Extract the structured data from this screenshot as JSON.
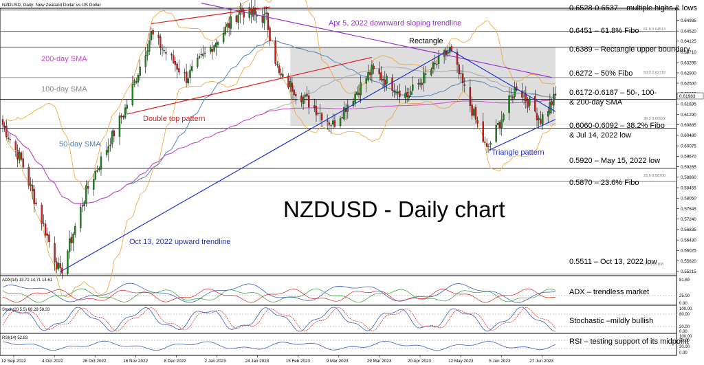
{
  "header": {
    "symbol_label": "NZDUSD, Daily:  New Zealand Dollar vs US Dollar"
  },
  "watermark": "NZDUSD - Daily chart",
  "colors": {
    "up": "#1a8f1a",
    "down": "#e01b1b",
    "sma50": "#4f86b7",
    "sma100": "#a9a9a9",
    "sma200": "#cc44cc",
    "bands": "#f0a030",
    "trend_blue": "#2233cc",
    "trend_purple": "#9933cc",
    "trend_red": "#e01b1b",
    "level": "#000000",
    "rectangle_fill": "#d3d3d3"
  },
  "price_axis": {
    "ticks": [
      "0.65350",
      "0.64935",
      "0.64520",
      "0.64125",
      "0.63710",
      "0.63295",
      "0.62900",
      "0.62500",
      "0.62100",
      "0.61695",
      "0.61290",
      "0.60885",
      "0.60480",
      "0.60075",
      "0.59670",
      "0.59265",
      "0.58860",
      "0.58455",
      "0.58050",
      "0.57645",
      "0.57240",
      "0.56835",
      "0.56430",
      "0.56025",
      "0.55620",
      "0.55215"
    ],
    "current_price": "0.61983"
  },
  "time_axis": {
    "labels": [
      "12 Sep 2022",
      "4 Oct 2022",
      "26 Oct 2022",
      "16 Nov 2022",
      "8 Dec 2022",
      "2 Jan 2023",
      "24 Jan 2023",
      "15 Feb 2023",
      "9 Mar 2023",
      "29 Mar 2023",
      "20 Apr 2023",
      "12 May 2023",
      "5 Jun 2023",
      "27 Jun 2023"
    ]
  },
  "fibo_tags": [
    {
      "text": "61.8 0.64513",
      "price": 0.64513
    },
    {
      "text": "50.0 0.62718",
      "price": 0.62718
    },
    {
      "text": "38.2 0.60922",
      "price": 0.60922
    },
    {
      "text": "23.6 0.58700",
      "price": 0.587
    },
    {
      "text": "0.0 0.55108",
      "price": 0.55108
    }
  ],
  "levels": [
    {
      "price": 0.6533,
      "label": "0.6528-0.6537 – multiple highs & lows"
    },
    {
      "price": 0.6451,
      "label": "0.6451 – 61.8% Fibo"
    },
    {
      "price": 0.6389,
      "label": "0.6389 – Rectangle upper boundary"
    },
    {
      "price": 0.6272,
      "label": "0.6272 – 50% Fibo"
    },
    {
      "price": 0.6187,
      "label": "0.6172-0.6187 – 50-, 100-"
    },
    {
      "price": 0.6076,
      "label": "0.6060-0.6092 – 38.2% Fibo"
    },
    {
      "price": 0.592,
      "label": "0.5920 – May 15, 2022 low"
    },
    {
      "price": 0.587,
      "label": "0.5870 – 23.6% Fibo"
    },
    {
      "price": 0.5511,
      "label": "0.5511 – Oct 13, 2022 low"
    }
  ],
  "level_sublabels": {
    "sma": "& 200-day SMA",
    "jul": "& Jul 14, 2022 low"
  },
  "annotations": {
    "downtrend": "Apr 5, 2022 downward sloping trendline",
    "rectangle": "Rectangle",
    "sma200": "200-day SMA",
    "sma100": "100-day SMA",
    "sma50": "50-day SMA",
    "double_top": "Double top pattern",
    "triangle": "Triangle pattern",
    "uptrend": "Oct 13, 2022 upward trendline"
  },
  "indicators": {
    "adx": {
      "header": "ADX(14) 13.72 14.71 14.61",
      "note": "ADX – trendless market",
      "ticks": [
        "81.69",
        "25.00",
        "0.00"
      ]
    },
    "stoch": {
      "header": "Stoch(20,5,5) 68.28 58.33",
      "note": "Stochastic –mildly bullish",
      "ticks": [
        "100.00",
        "80.00",
        "20.00",
        "0.00"
      ]
    },
    "rsi": {
      "header": "RSI(14) 52.83",
      "note": "RSI – testing support of its midpoint",
      "ticks": [
        "100.00",
        "70.00",
        "30.00",
        "0.00"
      ]
    }
  },
  "chart_data": {
    "type": "candlestick",
    "symbol": "NZDUSD",
    "timeframe": "Daily",
    "x_range": [
      "2022-09-12",
      "2023-07-07"
    ],
    "price_range": [
      0.5505,
      0.654
    ],
    "swing_points": [
      {
        "date": "2022-09-12",
        "price": 0.609
      },
      {
        "date": "2022-09-22",
        "price": 0.595
      },
      {
        "date": "2022-10-13",
        "price": 0.5511
      },
      {
        "date": "2022-10-27",
        "price": 0.583
      },
      {
        "date": "2022-11-17",
        "price": 0.615
      },
      {
        "date": "2022-12-01",
        "price": 0.644
      },
      {
        "date": "2022-12-20",
        "price": 0.627
      },
      {
        "date": "2023-01-18",
        "price": 0.653
      },
      {
        "date": "2023-02-01",
        "price": 0.65
      },
      {
        "date": "2023-02-08",
        "price": 0.628
      },
      {
        "date": "2023-03-09",
        "price": 0.609
      },
      {
        "date": "2023-03-30",
        "price": 0.63
      },
      {
        "date": "2023-04-18",
        "price": 0.62
      },
      {
        "date": "2023-05-11",
        "price": 0.638
      },
      {
        "date": "2023-05-31",
        "price": 0.599
      },
      {
        "date": "2023-06-16",
        "price": 0.624
      },
      {
        "date": "2023-06-29",
        "price": 0.611
      },
      {
        "date": "2023-07-07",
        "price": 0.6198
      }
    ],
    "rectangle": {
      "top": 0.6389,
      "bottom": 0.6085,
      "start": "2023-02-14",
      "end": "2023-07-07"
    },
    "trendlines": [
      {
        "name": "Apr 5, 2022 downward sloping trendline",
        "from": [
          "2022-12-28",
          0.656
        ],
        "to": [
          "2023-07-05",
          0.6272
        ]
      },
      {
        "name": "Oct 13, 2022 upward trendline",
        "from": [
          "2022-10-13",
          0.552
        ],
        "to": [
          "2023-05-11",
          0.638
        ]
      },
      {
        "name": "Double top pattern (upper)",
        "from": [
          "2022-12-01",
          0.648
        ],
        "to": [
          "2023-02-03",
          0.6545
        ]
      },
      {
        "name": "Double top pattern (lower)",
        "from": [
          "2022-11-18",
          0.613
        ],
        "to": [
          "2023-03-30",
          0.635
        ]
      },
      {
        "name": "Triangle pattern (upper)",
        "from": [
          "2023-05-11",
          0.638
        ],
        "to": [
          "2023-07-07",
          0.614
        ]
      },
      {
        "name": "Triangle pattern (lower)",
        "from": [
          "2023-06-01",
          0.599
        ],
        "to": [
          "2023-07-07",
          0.611
        ]
      }
    ]
  }
}
